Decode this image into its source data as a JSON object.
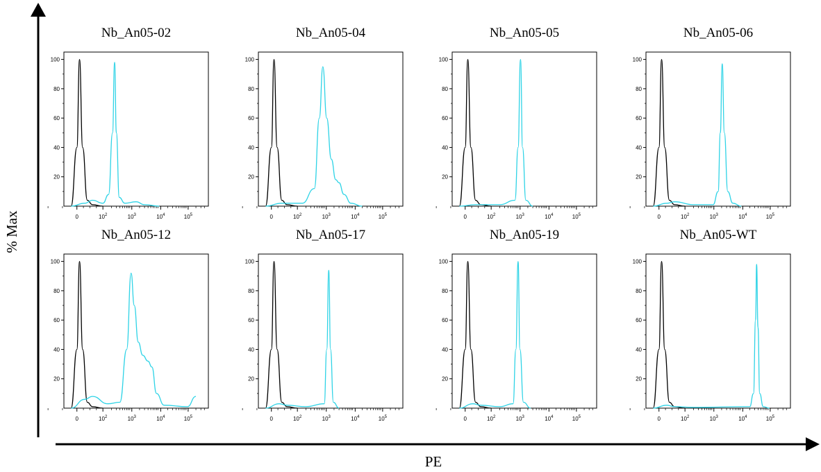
{
  "figure": {
    "y_axis_label": "% Max",
    "x_axis_label": "PE"
  },
  "chart_data": [
    {
      "type": "line",
      "title": "Nb_An05-02",
      "y_ticks": [
        "20",
        "40",
        "60",
        "80",
        "100"
      ],
      "x_ticks": [
        "0",
        "10^2",
        "10^3",
        "10^4",
        "10^5"
      ],
      "series": [
        {
          "color": "#000000",
          "points": [
            [
              -10,
              0
            ],
            [
              0,
              40
            ],
            [
              10,
              100
            ],
            [
              22,
              40
            ],
            [
              40,
              4
            ],
            [
              60,
              1
            ],
            [
              100,
              0
            ]
          ]
        },
        {
          "color": "#2ed3e6",
          "points": [
            [
              -10,
              0
            ],
            [
              30,
              2
            ],
            [
              60,
              4
            ],
            [
              100,
              2
            ],
            [
              160,
              8
            ],
            [
              220,
              50
            ],
            [
              260,
              98
            ],
            [
              300,
              50
            ],
            [
              380,
              6
            ],
            [
              600,
              2
            ],
            [
              1500,
              3
            ],
            [
              3000,
              1
            ],
            [
              10000,
              0
            ]
          ]
        }
      ]
    },
    {
      "type": "line",
      "title": "Nb_An05-04",
      "y_ticks": [
        "20",
        "40",
        "60",
        "80",
        "100"
      ],
      "x_ticks": [
        "0",
        "10^2",
        "10^3",
        "10^4",
        "10^5"
      ],
      "series": [
        {
          "color": "#000000",
          "points": [
            [
              -10,
              0
            ],
            [
              0,
              40
            ],
            [
              10,
              100
            ],
            [
              22,
              40
            ],
            [
              40,
              4
            ],
            [
              60,
              1
            ],
            [
              100,
              0
            ]
          ]
        },
        {
          "color": "#2ed3e6",
          "points": [
            [
              -10,
              0
            ],
            [
              40,
              2
            ],
            [
              150,
              2
            ],
            [
              400,
              12
            ],
            [
              600,
              60
            ],
            [
              800,
              95
            ],
            [
              1100,
              60
            ],
            [
              1600,
              32
            ],
            [
              2300,
              18
            ],
            [
              3000,
              16
            ],
            [
              4500,
              8
            ],
            [
              8000,
              2
            ],
            [
              20000,
              0
            ]
          ]
        }
      ]
    },
    {
      "type": "line",
      "title": "Nb_An05-05",
      "y_ticks": [
        "20",
        "40",
        "60",
        "80",
        "100"
      ],
      "x_ticks": [
        "0",
        "10^2",
        "10^3",
        "10^4",
        "10^5"
      ],
      "series": [
        {
          "color": "#000000",
          "points": [
            [
              -10,
              0
            ],
            [
              0,
              40
            ],
            [
              10,
              100
            ],
            [
              22,
              40
            ],
            [
              40,
              4
            ],
            [
              60,
              1
            ],
            [
              100,
              0
            ]
          ]
        },
        {
          "color": "#2ed3e6",
          "points": [
            [
              -10,
              0
            ],
            [
              40,
              1
            ],
            [
              200,
              1
            ],
            [
              700,
              4
            ],
            [
              900,
              40
            ],
            [
              1100,
              100
            ],
            [
              1300,
              40
            ],
            [
              1700,
              4
            ],
            [
              3000,
              0
            ]
          ]
        }
      ]
    },
    {
      "type": "line",
      "title": "Nb_An05-06",
      "y_ticks": [
        "20",
        "40",
        "60",
        "80",
        "100"
      ],
      "x_ticks": [
        "0",
        "10^2",
        "10^3",
        "10^4",
        "10^5"
      ],
      "series": [
        {
          "color": "#000000",
          "points": [
            [
              -10,
              0
            ],
            [
              0,
              40
            ],
            [
              10,
              100
            ],
            [
              22,
              40
            ],
            [
              40,
              4
            ],
            [
              60,
              1
            ],
            [
              100,
              0
            ]
          ]
        },
        {
          "color": "#2ed3e6",
          "points": [
            [
              -10,
              0
            ],
            [
              30,
              2
            ],
            [
              60,
              3
            ],
            [
              200,
              1
            ],
            [
              1000,
              1
            ],
            [
              1500,
              10
            ],
            [
              1800,
              50
            ],
            [
              2100,
              97
            ],
            [
              2500,
              50
            ],
            [
              3300,
              10
            ],
            [
              5000,
              2
            ],
            [
              10000,
              0
            ]
          ]
        }
      ]
    },
    {
      "type": "line",
      "title": "Nb_An05-12",
      "y_ticks": [
        "20",
        "40",
        "60",
        "80",
        "100"
      ],
      "x_ticks": [
        "0",
        "10^2",
        "10^3",
        "10^4",
        "10^5"
      ],
      "series": [
        {
          "color": "#000000",
          "points": [
            [
              -10,
              0
            ],
            [
              0,
              40
            ],
            [
              10,
              100
            ],
            [
              22,
              40
            ],
            [
              40,
              4
            ],
            [
              60,
              1
            ],
            [
              100,
              0
            ]
          ]
        },
        {
          "color": "#2ed3e6",
          "points": [
            [
              -10,
              0
            ],
            [
              30,
              6
            ],
            [
              60,
              8
            ],
            [
              150,
              3
            ],
            [
              400,
              4
            ],
            [
              700,
              40
            ],
            [
              1000,
              92
            ],
            [
              1300,
              70
            ],
            [
              1800,
              45
            ],
            [
              2600,
              36
            ],
            [
              4000,
              32
            ],
            [
              5500,
              28
            ],
            [
              8000,
              10
            ],
            [
              15000,
              2
            ],
            [
              100000,
              1
            ],
            [
              200000,
              8
            ]
          ]
        }
      ]
    },
    {
      "type": "line",
      "title": "Nb_An05-17",
      "y_ticks": [
        "20",
        "40",
        "60",
        "80",
        "100"
      ],
      "x_ticks": [
        "0",
        "10^2",
        "10^3",
        "10^4",
        "10^5"
      ],
      "series": [
        {
          "color": "#000000",
          "points": [
            [
              -10,
              0
            ],
            [
              0,
              40
            ],
            [
              10,
              100
            ],
            [
              22,
              40
            ],
            [
              40,
              4
            ],
            [
              60,
              1
            ],
            [
              100,
              0
            ]
          ]
        },
        {
          "color": "#2ed3e6",
          "points": [
            [
              -10,
              0
            ],
            [
              30,
              3
            ],
            [
              60,
              2
            ],
            [
              200,
              1
            ],
            [
              900,
              3
            ],
            [
              1100,
              40
            ],
            [
              1300,
              94
            ],
            [
              1500,
              40
            ],
            [
              1900,
              4
            ],
            [
              3000,
              0
            ]
          ]
        }
      ]
    },
    {
      "type": "line",
      "title": "Nb_An05-19",
      "y_ticks": [
        "20",
        "40",
        "60",
        "80",
        "100"
      ],
      "x_ticks": [
        "0",
        "10^2",
        "10^3",
        "10^4",
        "10^5"
      ],
      "series": [
        {
          "color": "#000000",
          "points": [
            [
              -10,
              0
            ],
            [
              0,
              40
            ],
            [
              10,
              100
            ],
            [
              22,
              40
            ],
            [
              40,
              4
            ],
            [
              60,
              1
            ],
            [
              100,
              0
            ]
          ]
        },
        {
          "color": "#2ed3e6",
          "points": [
            [
              -10,
              0
            ],
            [
              30,
              3
            ],
            [
              60,
              2
            ],
            [
              200,
              1
            ],
            [
              600,
              3
            ],
            [
              750,
              40
            ],
            [
              900,
              100
            ],
            [
              1050,
              40
            ],
            [
              1400,
              4
            ],
            [
              2500,
              0
            ]
          ]
        }
      ]
    },
    {
      "type": "line",
      "title": "Nb_An05-WT",
      "y_ticks": [
        "20",
        "40",
        "60",
        "80",
        "100"
      ],
      "x_ticks": [
        "0",
        "10^2",
        "10^3",
        "10^4",
        "10^5"
      ],
      "series": [
        {
          "color": "#000000",
          "points": [
            [
              -10,
              0
            ],
            [
              0,
              40
            ],
            [
              10,
              100
            ],
            [
              22,
              40
            ],
            [
              40,
              4
            ],
            [
              60,
              1
            ],
            [
              100,
              0
            ]
          ]
        },
        {
          "color": "#2ed3e6",
          "points": [
            [
              -10,
              0
            ],
            [
              30,
              2
            ],
            [
              60,
              1
            ],
            [
              200,
              0.5
            ],
            [
              20000,
              1
            ],
            [
              27000,
              10
            ],
            [
              32000,
              60
            ],
            [
              35000,
              98
            ],
            [
              39000,
              55
            ],
            [
              45000,
              10
            ],
            [
              60000,
              1
            ],
            [
              100000,
              0
            ]
          ]
        }
      ]
    }
  ]
}
